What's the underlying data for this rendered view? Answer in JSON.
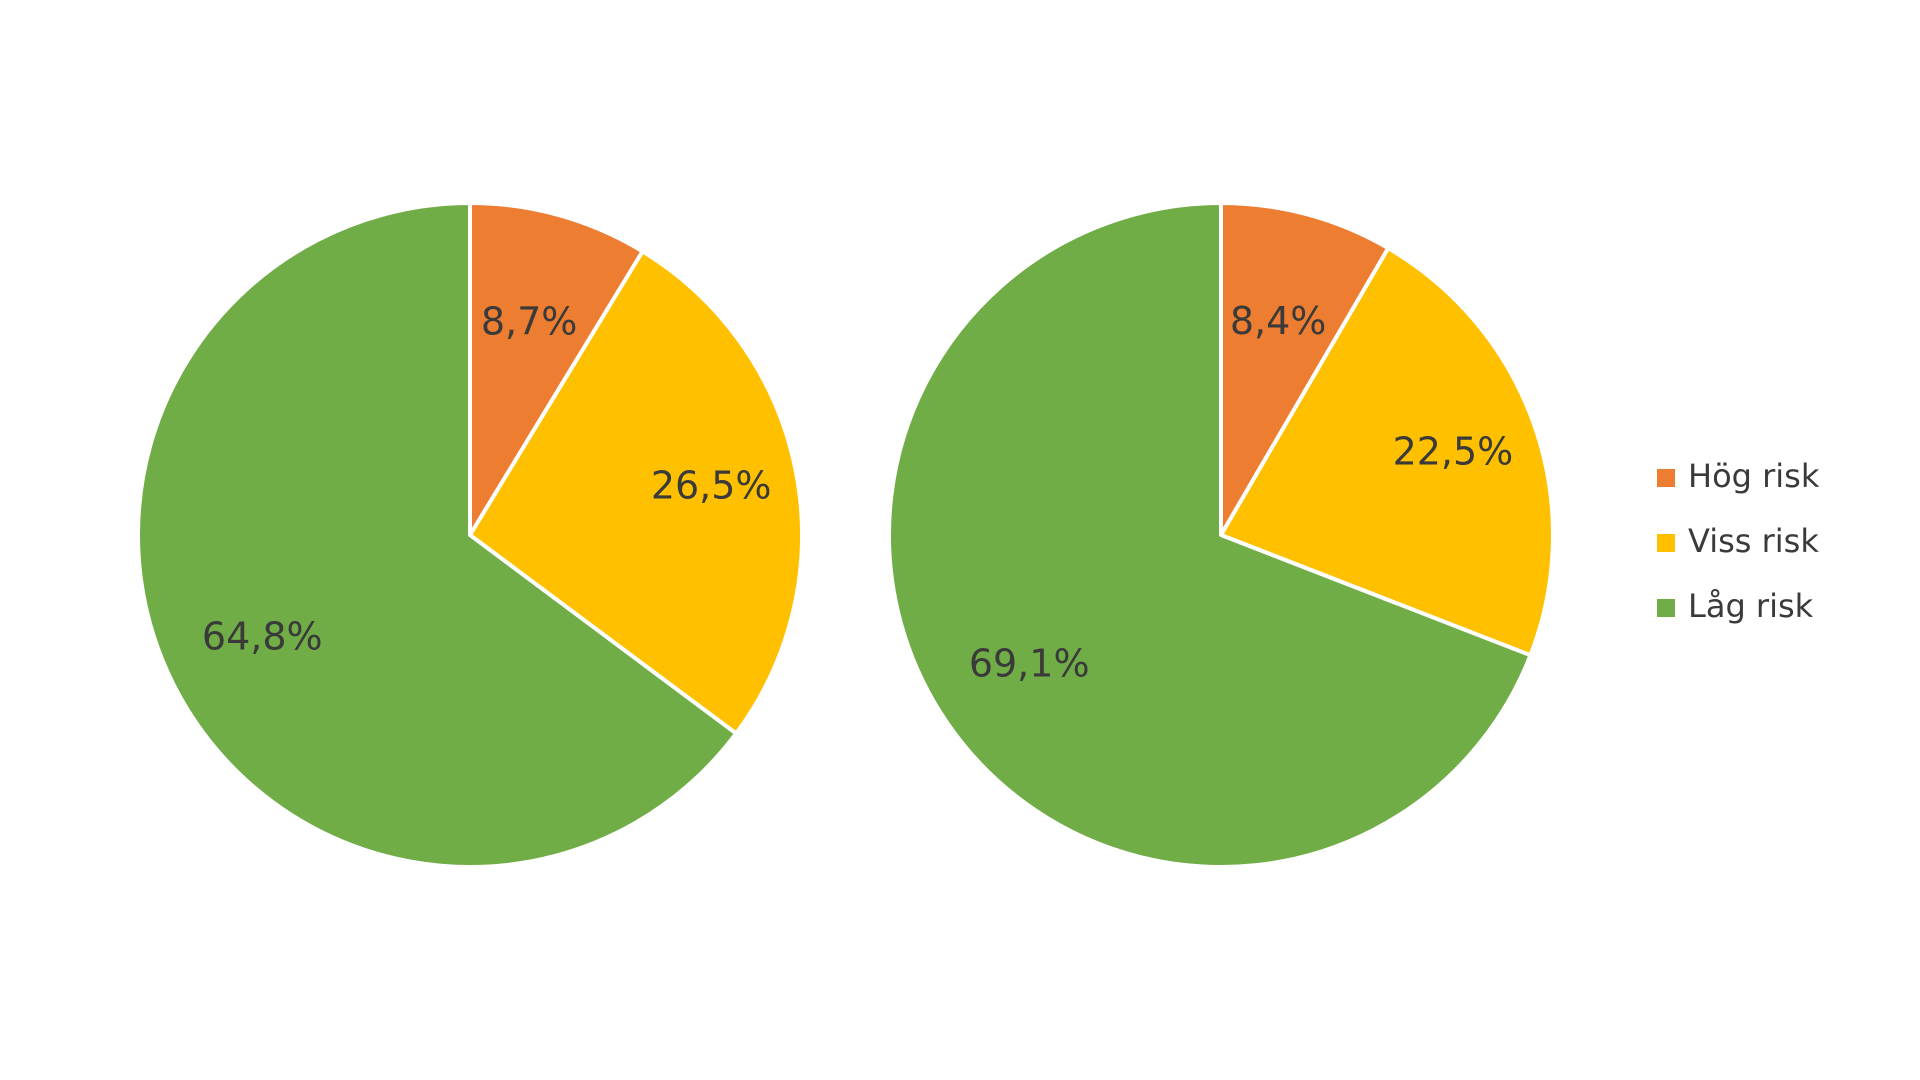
{
  "chart_data": [
    {
      "type": "pie",
      "slices": [
        {
          "label": "Hög risk",
          "value": 8.7,
          "display": "8,7%",
          "color": "#ED7D31"
        },
        {
          "label": "Viss risk",
          "value": 26.5,
          "display": "26,5%",
          "color": "#FFC000"
        },
        {
          "label": "Låg risk",
          "value": 64.8,
          "display": "64,8%",
          "color": "#70AD47"
        }
      ]
    },
    {
      "type": "pie",
      "slices": [
        {
          "label": "Hög risk",
          "value": 8.4,
          "display": "8,4%",
          "color": "#ED7D31"
        },
        {
          "label": "Viss risk",
          "value": 22.5,
          "display": "22,5%",
          "color": "#FFC000"
        },
        {
          "label": "Låg risk",
          "value": 69.1,
          "display": "69,1%",
          "color": "#70AD47"
        }
      ]
    }
  ],
  "legend": {
    "placement": "right",
    "items": [
      {
        "label": "Hög risk",
        "color": "#ED7D31"
      },
      {
        "label": "Viss risk",
        "color": "#FFC000"
      },
      {
        "label": "Låg risk",
        "color": "#70AD47"
      }
    ]
  }
}
